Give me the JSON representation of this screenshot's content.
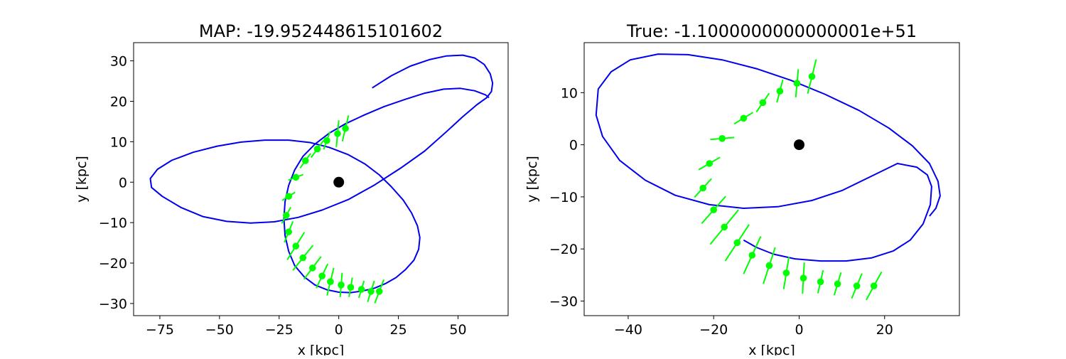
{
  "chart_data": [
    {
      "type": "scatter",
      "title": "MAP: -19.952448615101602",
      "xlabel": "x [kpc]",
      "ylabel": "y [kpc]",
      "xlim": [
        -86,
        71
      ],
      "ylim": [
        -33,
        34.5
      ],
      "xticks": [
        -75,
        -50,
        -25,
        0,
        25,
        50
      ],
      "yticks": [
        -30,
        -20,
        -10,
        0,
        10,
        20,
        30
      ],
      "xtick_labels": [
        "−75",
        "−50",
        "−25",
        "0",
        "25",
        "50"
      ],
      "ytick_labels": [
        "−30",
        "−20",
        "−10",
        "0",
        "10",
        "20",
        "30"
      ],
      "grid": false,
      "colors": {
        "orbit": "#0000ee",
        "points": "#00ff00",
        "center": "#000000"
      },
      "center": {
        "x": 0,
        "y": 0
      },
      "orbit": {
        "name": "",
        "x": [
          14,
          22,
          30,
          38,
          45,
          52,
          57,
          61,
          63.5,
          64.5,
          64,
          62,
          58,
          52,
          45,
          36,
          26,
          15,
          4,
          -7,
          -17,
          -27,
          -37,
          -47,
          -57,
          -66,
          -74,
          -78.5,
          -79,
          -76,
          -70,
          -61,
          -51,
          -41,
          -31,
          -21,
          -12,
          -4,
          4,
          11,
          17,
          22,
          27,
          30.5,
          33,
          34,
          33.5,
          31.5,
          28,
          24,
          19.5,
          15,
          10,
          5,
          0,
          -5,
          -10,
          -14.5,
          -18.5,
          -21,
          -22.5,
          -23,
          -22.5,
          -21,
          -18.5,
          -15,
          -10,
          -4,
          3,
          11,
          19,
          28,
          36,
          44,
          51,
          57,
          61.5,
          63
        ],
        "y": [
          23.3,
          26.3,
          28.7,
          30.3,
          31.2,
          31.4,
          30.7,
          29.1,
          26.8,
          24.5,
          22.4,
          20.9,
          19.2,
          16.2,
          12.4,
          7.7,
          3.5,
          -0.7,
          -4.3,
          -6.9,
          -8.7,
          -9.8,
          -10.1,
          -9.7,
          -8.5,
          -6.3,
          -3.5,
          -1.3,
          0.9,
          3.2,
          5.4,
          7.4,
          8.9,
          9.9,
          10.4,
          10.4,
          9.8,
          8.6,
          6.8,
          4.5,
          1.8,
          -1.1,
          -4.4,
          -7.6,
          -10.8,
          -13.7,
          -16.6,
          -19.3,
          -21.6,
          -23.6,
          -25.1,
          -26.2,
          -26.9,
          -27.3,
          -27.2,
          -26.6,
          -25.4,
          -23.4,
          -20.6,
          -17.1,
          -13.2,
          -9.0,
          -4.8,
          -0.8,
          3.0,
          6.4,
          9.4,
          12.1,
          14.5,
          16.7,
          18.7,
          20.5,
          22.0,
          23.0,
          23.2,
          22.6,
          21.6,
          20.9
        ]
      },
      "points": {
        "x": [
          2.8,
          -0.5,
          -5,
          -9,
          -14,
          -18,
          -21,
          -22,
          -21,
          -18,
          -15,
          -11,
          -7,
          -3.5,
          1,
          5,
          9.5,
          13.5,
          17
        ],
        "y": [
          13.3,
          12.0,
          10.3,
          8.2,
          5.3,
          1.2,
          -3.5,
          -8.2,
          -12.3,
          -15.8,
          -18.7,
          -21.2,
          -23.2,
          -24.6,
          -25.4,
          -26.0,
          -26.5,
          -27.0,
          -27.0
        ],
        "err_dx": [
          1.3,
          0.5,
          1.3,
          2.6,
          2.2,
          3.1,
          2.7,
          1.9,
          1.8,
          3.6,
          4.2,
          3.6,
          2.4,
          1.4,
          0.4,
          0.7,
          1.1,
          1.4,
          1.9
        ],
        "err_dy": [
          3.2,
          3.3,
          2.2,
          2.1,
          1.8,
          0.7,
          1.0,
          2.0,
          2.6,
          3.4,
          3.1,
          2.8,
          3.0,
          3.4,
          3.0,
          2.4,
          2.1,
          2.6,
          2.9
        ]
      }
    },
    {
      "type": "scatter",
      "title": "True: -1.1000000000000001e+51",
      "xlabel": "x [kpc]",
      "ylabel": "y [kpc]",
      "xlim": [
        -50.3,
        37.5
      ],
      "ylim": [
        -32.8,
        19.6
      ],
      "xticks": [
        -40,
        -20,
        0,
        20
      ],
      "yticks": [
        -30,
        -20,
        -10,
        0,
        10
      ],
      "xtick_labels": [
        "−40",
        "−20",
        "0",
        "20"
      ],
      "ytick_labels": [
        "−30",
        "−20",
        "−10",
        "0",
        "10"
      ],
      "grid": false,
      "colors": {
        "orbit": "#0000ee",
        "points": "#00ff00",
        "center": "#000000"
      },
      "center": {
        "x": 0,
        "y": 0
      },
      "orbit": {
        "name": "",
        "x": [
          -13,
          -10,
          -6,
          -1,
          5,
          11,
          17,
          22,
          26,
          29,
          30.7,
          31,
          30,
          27.5,
          23,
          17,
          10,
          3,
          -5,
          -13,
          -21,
          -29,
          -36,
          -42,
          -46,
          -47.5,
          -47,
          -44,
          -39.5,
          -33,
          -26,
          -18,
          -10,
          -2,
          6,
          14,
          21,
          26.5,
          30.5,
          32.5,
          33,
          32,
          30.5
        ],
        "y": [
          -18.3,
          -19.7,
          -21.0,
          -21.9,
          -22.3,
          -22.3,
          -21.7,
          -20.4,
          -18.3,
          -15.2,
          -11.5,
          -8.0,
          -5.8,
          -4.3,
          -3.6,
          -6.0,
          -8.8,
          -10.7,
          -11.9,
          -12.2,
          -11.5,
          -9.7,
          -6.8,
          -3.0,
          1.6,
          5.7,
          10.7,
          14.0,
          16.3,
          17.4,
          17.3,
          16.3,
          14.6,
          12.4,
          9.7,
          6.6,
          3.2,
          -0.2,
          -3.6,
          -7.0,
          -9.8,
          -12.2,
          -13.7
        ]
      },
      "points": {
        "x": [
          3,
          -0.5,
          -4.5,
          -8.5,
          -13,
          -18,
          -21,
          -22.5,
          -20,
          -17.5,
          -14.5,
          -11,
          -7,
          -3,
          1,
          5,
          9,
          13.5,
          17.5
        ],
        "y": [
          13.1,
          11.8,
          10.3,
          8.1,
          5.1,
          1.2,
          -3.6,
          -8.3,
          -12.5,
          -15.8,
          -18.8,
          -21.2,
          -23.2,
          -24.6,
          -25.6,
          -26.3,
          -26.7,
          -27.1,
          -27.1
        ],
        "err_dx": [
          1.0,
          0.3,
          0.7,
          1.5,
          2.2,
          2.8,
          2.5,
          2.0,
          2.8,
          3.3,
          2.8,
          2.0,
          1.4,
          0.6,
          0.2,
          0.6,
          0.8,
          1.2,
          1.8
        ],
        "err_dy": [
          3.3,
          2.7,
          2.2,
          1.8,
          1.1,
          0.2,
          1.2,
          1.8,
          2.6,
          3.3,
          3.5,
          3.6,
          3.5,
          3.1,
          3.0,
          2.2,
          2.2,
          2.4,
          2.7
        ]
      }
    }
  ]
}
